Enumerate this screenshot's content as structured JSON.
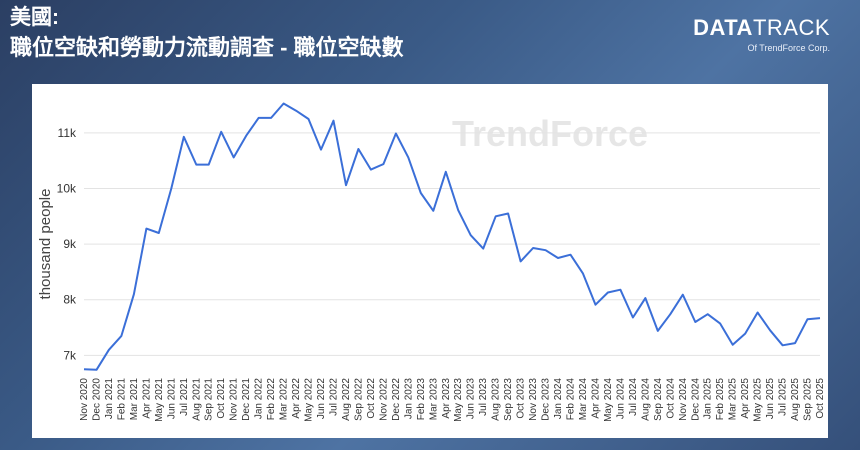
{
  "header": {
    "title_line1": "美國:",
    "title_line2": "職位空缺和勞動力流動調查 - 職位空缺數"
  },
  "brand": {
    "logo_bold": "DATA",
    "logo_light": "TRACK",
    "sub": "Of TrendForce Corp."
  },
  "watermark": "TrendForce",
  "chart_data": {
    "type": "line",
    "ylabel": "thousand people",
    "xlabel": "",
    "ylim": [
      6700,
      11700
    ],
    "yticks": [
      7000,
      8000,
      9000,
      10000,
      11000
    ],
    "ytick_labels": [
      "7k",
      "8k",
      "9k",
      "10k",
      "11k"
    ],
    "grid": "horizontal",
    "line_color": "#3b6fd8",
    "categories": [
      "Nov 2020",
      "Dec 2020",
      "Jan 2021",
      "Feb 2021",
      "Mar 2021",
      "Apr 2021",
      "May 2021",
      "Jun 2021",
      "Jul 2021",
      "Aug 2021",
      "Sep 2021",
      "Oct 2021",
      "Nov 2021",
      "Dec 2021",
      "Jan 2022",
      "Feb 2022",
      "Mar 2022",
      "Apr 2022",
      "May 2022",
      "Jun 2022",
      "Jul 2022",
      "Aug 2022",
      "Sep 2022",
      "Oct 2022",
      "Nov 2022",
      "Dec 2022",
      "Jan 2023",
      "Feb 2023",
      "Mar 2023",
      "Apr 2023",
      "May 2023",
      "Jun 2023",
      "Jul 2023",
      "Aug 2023",
      "Sep 2023",
      "Oct 2023",
      "Nov 2023",
      "Dec 2023",
      "Jan 2024",
      "Feb 2024",
      "Mar 2024",
      "Apr 2024",
      "May 2024",
      "Jun 2024",
      "Jul 2024",
      "Aug 2024",
      "Sep 2024",
      "Oct 2024",
      "Nov 2024",
      "Dec 2024",
      "Jan 2025",
      "Feb 2025",
      "Mar 2025",
      "Apr 2025",
      "May 2025",
      "Jun 2025",
      "Jul 2025",
      "Aug 2025",
      "Sep 2025",
      "Oct 2025"
    ],
    "series": [
      {
        "values": [
          6750,
          6740,
          7100,
          7350,
          8100,
          9280,
          9200,
          10000,
          10930,
          10430,
          10430,
          11020,
          10560,
          10950,
          11270,
          11270,
          11530,
          11400,
          11250,
          10700,
          11220,
          10060,
          10710,
          10340,
          10440,
          10990,
          10560,
          9920,
          9600,
          10300,
          9610,
          9160,
          8920,
          9500,
          9550,
          8690,
          8930,
          8890,
          8750,
          8810,
          8470,
          7910,
          8130,
          8180,
          7680,
          8030,
          7440,
          7740,
          8090,
          7600,
          7740,
          7570,
          7190,
          7390,
          7770,
          7450,
          7180,
          7220,
          7650,
          7670
        ]
      }
    ]
  }
}
